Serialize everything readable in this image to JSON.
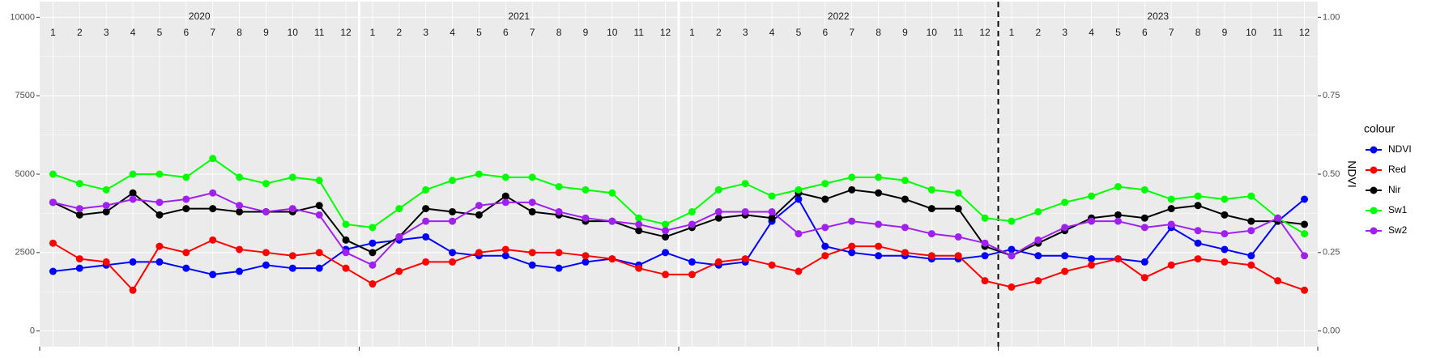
{
  "chart_data": {
    "type": "line",
    "y2_label": "NDVI",
    "legend_title": "colour",
    "legend_position": "right",
    "grid": true,
    "ylim": [
      -500,
      10500
    ],
    "yticks": [
      0,
      2500,
      5000,
      7500,
      10000
    ],
    "y2lim": [
      -0.05,
      1.05
    ],
    "y2ticks": [
      {
        "value": 0,
        "label": "0.00"
      },
      {
        "value": 0.25,
        "label": "0.25"
      },
      {
        "value": 0.5,
        "label": "0.50"
      },
      {
        "value": 0.75,
        "label": "0.75"
      },
      {
        "value": 1,
        "label": "1.00"
      }
    ],
    "vline": "2023-01",
    "strips": [
      {
        "year": "2020",
        "months": [
          1,
          2,
          3,
          4,
          5,
          6,
          7,
          8,
          9,
          10,
          11,
          12
        ]
      },
      {
        "year": "2021",
        "months": [
          1,
          2,
          3,
          4,
          5,
          6,
          7,
          8,
          9,
          10,
          11,
          12
        ]
      },
      {
        "year": "2022",
        "months": [
          1,
          2,
          3,
          4,
          5,
          6,
          7,
          8,
          9,
          10,
          11,
          12
        ]
      },
      {
        "year": "2023",
        "months": [
          1,
          2,
          3,
          4,
          5,
          6,
          7,
          8,
          9,
          10,
          11,
          12
        ]
      }
    ],
    "x": [
      "2020-01",
      "2020-02",
      "2020-03",
      "2020-04",
      "2020-05",
      "2020-06",
      "2020-07",
      "2020-08",
      "2020-09",
      "2020-10",
      "2020-11",
      "2020-12",
      "2021-01",
      "2021-02",
      "2021-03",
      "2021-04",
      "2021-05",
      "2021-06",
      "2021-07",
      "2021-08",
      "2021-09",
      "2021-10",
      "2021-11",
      "2021-12",
      "2022-01",
      "2022-02",
      "2022-03",
      "2022-04",
      "2022-05",
      "2022-06",
      "2022-07",
      "2022-08",
      "2022-09",
      "2022-10",
      "2022-11",
      "2022-12",
      "2023-01",
      "2023-02",
      "2023-03",
      "2023-04",
      "2023-05",
      "2023-06",
      "2023-07",
      "2023-08",
      "2023-09",
      "2023-10",
      "2023-11",
      "2023-12"
    ],
    "series": [
      {
        "name": "NDVI",
        "color": "#0000ff",
        "axis": "y2",
        "values": [
          0.19,
          0.2,
          0.21,
          0.22,
          0.22,
          0.2,
          0.18,
          0.19,
          0.21,
          0.2,
          0.2,
          0.26,
          0.28,
          0.29,
          0.3,
          0.25,
          0.24,
          0.24,
          0.21,
          0.2,
          0.22,
          0.23,
          0.21,
          0.25,
          0.22,
          0.21,
          0.22,
          0.35,
          0.42,
          0.27,
          0.25,
          0.24,
          0.24,
          0.23,
          0.23,
          0.24,
          0.26,
          0.24,
          0.24,
          0.23,
          0.23,
          0.22,
          0.33,
          0.28,
          0.26,
          0.24,
          0.35,
          0.42
        ]
      },
      {
        "name": "Red",
        "color": "#ff0000",
        "values": [
          2800,
          2300,
          2200,
          1300,
          2700,
          2500,
          2900,
          2600,
          2500,
          2400,
          2500,
          2000,
          1500,
          1900,
          2200,
          2200,
          2500,
          2600,
          2500,
          2500,
          2400,
          2300,
          2000,
          1800,
          1800,
          2200,
          2300,
          2100,
          1900,
          2400,
          2700,
          2700,
          2500,
          2400,
          2400,
          1600,
          1400,
          1600,
          1900,
          2100,
          2300,
          1700,
          2100,
          2300,
          2200,
          2100,
          1600,
          1300
        ]
      },
      {
        "name": "Nir",
        "color": "#000000",
        "values": [
          4100,
          3700,
          3800,
          4400,
          3700,
          3900,
          3900,
          3800,
          3800,
          3800,
          4000,
          2900,
          2500,
          3000,
          3900,
          3800,
          3700,
          4300,
          3800,
          3700,
          3500,
          3500,
          3200,
          3000,
          3300,
          3600,
          3700,
          3600,
          4400,
          4200,
          4500,
          4400,
          4200,
          3900,
          3900,
          2700,
          2400,
          2800,
          3200,
          3600,
          3700,
          3600,
          3900,
          4000,
          3700,
          3500,
          3500,
          3400
        ]
      },
      {
        "name": "Sw1",
        "color": "#00ff00",
        "values": [
          5000,
          4700,
          4500,
          5000,
          5000,
          4900,
          5500,
          4900,
          4700,
          4900,
          4800,
          3400,
          3300,
          3900,
          4500,
          4800,
          5000,
          4900,
          4900,
          4600,
          4500,
          4400,
          3600,
          3400,
          3800,
          4500,
          4700,
          4300,
          4500,
          4700,
          4900,
          4900,
          4800,
          4500,
          4400,
          3600,
          3500,
          3800,
          4100,
          4300,
          4600,
          4500,
          4200,
          4300,
          4200,
          4300,
          3600,
          3100
        ]
      },
      {
        "name": "Sw2",
        "color": "#a020f0",
        "values": [
          4100,
          3900,
          4000,
          4200,
          4100,
          4200,
          4400,
          4000,
          3800,
          3900,
          3700,
          2500,
          2100,
          3000,
          3500,
          3500,
          4000,
          4100,
          4100,
          3800,
          3600,
          3500,
          3400,
          3200,
          3400,
          3800,
          3800,
          3800,
          3100,
          3300,
          3500,
          3400,
          3300,
          3100,
          3000,
          2800,
          2400,
          2900,
          3300,
          3500,
          3500,
          3300,
          3400,
          3200,
          3100,
          3200,
          3600,
          2400
        ]
      }
    ]
  }
}
